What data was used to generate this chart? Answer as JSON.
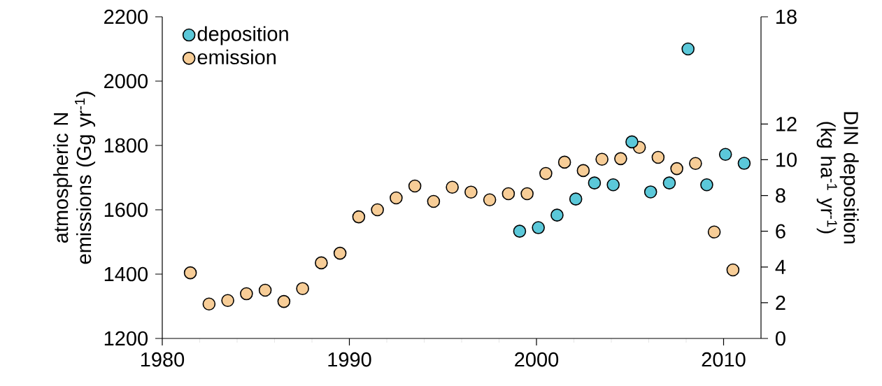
{
  "chart_data": {
    "type": "scatter",
    "ylabel": "atmospheric N emissions (Gg yr$^{-1}$)",
    "y2label": "DIN deposition (kg ha$^{-1}$ yr$^{-1}$)",
    "xlim": [
      1980,
      2012
    ],
    "xticks": [
      1980,
      1990,
      2000,
      2010
    ],
    "ylim": [
      1200,
      2200
    ],
    "yticks": [
      1200,
      1400,
      1600,
      1800,
      2000,
      2200
    ],
    "y2lim": [
      0,
      18
    ],
    "y2ticks": [
      0,
      2,
      4,
      6,
      8,
      10,
      12,
      18
    ],
    "legend": "top left",
    "marker": "circle",
    "series": [
      {
        "name": "deposition",
        "color": "#5bc8d9",
        "axis": "y2",
        "x": [
          1999.1,
          2000.1,
          2001.1,
          2002.1,
          2003.1,
          2004.1,
          2005.1,
          2006.1,
          2007.1,
          2008.1,
          2009.1,
          2010.1,
          2011.1
        ],
        "values": [
          6.0,
          6.2,
          6.9,
          7.8,
          8.7,
          8.6,
          11.0,
          8.2,
          8.7,
          16.2,
          8.6,
          10.3,
          9.8
        ]
      },
      {
        "name": "emission",
        "color": "#f7cd97",
        "axis": "y",
        "x": [
          1981.5,
          1982.5,
          1983.5,
          1984.5,
          1985.5,
          1986.5,
          1987.5,
          1988.5,
          1989.5,
          1990.5,
          1991.5,
          1992.5,
          1993.5,
          1994.5,
          1995.5,
          1996.5,
          1997.5,
          1998.5,
          1999.5,
          2000.5,
          2001.5,
          2002.5,
          2003.5,
          2004.5,
          2005.5,
          2006.5,
          2007.5,
          2008.5,
          2009.5,
          2010.5
        ],
        "values": [
          1404,
          1307,
          1318,
          1339,
          1350,
          1315,
          1355,
          1435,
          1465,
          1578,
          1600,
          1637,
          1674,
          1626,
          1670,
          1655,
          1631,
          1650,
          1650,
          1713,
          1748,
          1722,
          1757,
          1759,
          1794,
          1763,
          1728,
          1744,
          1531,
          1413
        ]
      }
    ]
  }
}
